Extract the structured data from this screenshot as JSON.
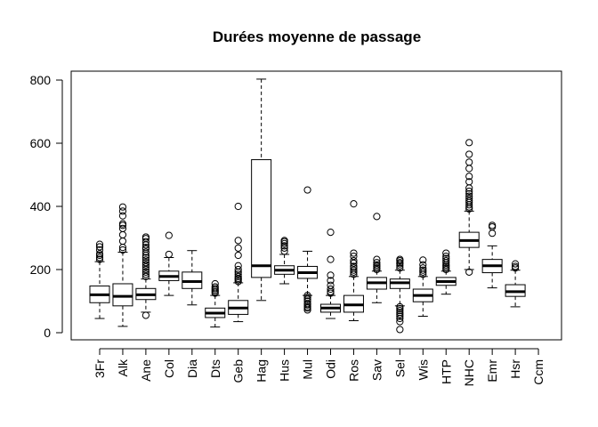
{
  "chart_data": {
    "type": "box",
    "title": "Durées moyenne de passage",
    "xlabel": "",
    "ylabel": "",
    "ylim": [
      -20,
      830
    ],
    "y_ticks": [
      0,
      200,
      400,
      600,
      800
    ],
    "grid": false,
    "legend": "none",
    "categories": [
      "3Fr",
      "Alk",
      "Ane",
      "Col",
      "Dia",
      "Dts",
      "Geb",
      "Hag",
      "Hus",
      "Mul",
      "Odi",
      "Ros",
      "Sav",
      "Sel",
      "Wis",
      "HTP",
      "NHC",
      "Emr",
      "Hsr",
      "Ccm"
    ],
    "boxes": [
      {
        "category": "3Fr",
        "min": 45,
        "q1": 95,
        "median": 120,
        "q3": 148,
        "max": 225,
        "outliers": [
          232,
          238,
          245,
          250,
          262,
          272,
          280
        ]
      },
      {
        "category": "Alk",
        "min": 20,
        "q1": 85,
        "median": 115,
        "q3": 155,
        "max": 255,
        "outliers": [
          262,
          270,
          290,
          310,
          330,
          340,
          345,
          370,
          385,
          398
        ]
      },
      {
        "category": "Ane",
        "min": 65,
        "q1": 105,
        "median": 120,
        "q3": 140,
        "max": 170,
        "outliers": [
          55,
          178,
          185,
          192,
          200,
          208,
          215,
          222,
          230,
          238,
          245,
          255,
          265,
          270,
          278,
          288,
          298,
          303
        ]
      },
      {
        "category": "Col",
        "min": 118,
        "q1": 165,
        "median": 178,
        "q3": 195,
        "max": 238,
        "outliers": [
          248,
          308
        ]
      },
      {
        "category": "Dia",
        "min": 88,
        "q1": 140,
        "median": 162,
        "q3": 192,
        "max": 260,
        "outliers": []
      },
      {
        "category": "Dts",
        "min": 18,
        "q1": 48,
        "median": 62,
        "q3": 78,
        "max": 118,
        "outliers": [
          125,
          130,
          135,
          140,
          145,
          155
        ]
      },
      {
        "category": "Geb",
        "min": 35,
        "q1": 58,
        "median": 78,
        "q3": 102,
        "max": 158,
        "outliers": [
          162,
          168,
          172,
          178,
          185,
          192,
          200,
          212,
          245,
          268,
          292,
          400
        ]
      },
      {
        "category": "Hag",
        "min": 102,
        "q1": 175,
        "median": 212,
        "q3": 548,
        "max": 803,
        "outliers": []
      },
      {
        "category": "Hus",
        "min": 155,
        "q1": 185,
        "median": 198,
        "q3": 212,
        "max": 248,
        "outliers": [
          258,
          268,
          275,
          282,
          288,
          292
        ]
      },
      {
        "category": "Mul",
        "min": 118,
        "q1": 172,
        "median": 190,
        "q3": 210,
        "max": 258,
        "outliers": [
          72,
          78,
          82,
          88,
          92,
          100,
          106,
          112,
          118,
          452
        ]
      },
      {
        "category": "Odi",
        "min": 45,
        "q1": 65,
        "median": 78,
        "q3": 90,
        "max": 118,
        "outliers": [
          125,
          130,
          138,
          150,
          165,
          182,
          232,
          318
        ]
      },
      {
        "category": "Ros",
        "min": 38,
        "q1": 65,
        "median": 88,
        "q3": 118,
        "max": 178,
        "outliers": [
          185,
          192,
          198,
          205,
          210,
          220,
          228,
          242,
          252,
          408
        ]
      },
      {
        "category": "Sav",
        "min": 95,
        "q1": 138,
        "median": 158,
        "q3": 175,
        "max": 195,
        "outliers": [
          200,
          205,
          210,
          215,
          222,
          232,
          368
        ]
      },
      {
        "category": "Sel",
        "min": 85,
        "q1": 140,
        "median": 158,
        "q3": 170,
        "max": 198,
        "outliers": [
          10,
          35,
          45,
          52,
          58,
          64,
          70,
          76,
          82,
          205,
          212,
          218,
          222,
          228,
          232
        ]
      },
      {
        "category": "Wis",
        "min": 52,
        "q1": 98,
        "median": 118,
        "q3": 138,
        "max": 178,
        "outliers": [
          185,
          192,
          198,
          205,
          215,
          230
        ]
      },
      {
        "category": "HTP",
        "min": 122,
        "q1": 150,
        "median": 162,
        "q3": 175,
        "max": 195,
        "outliers": [
          200,
          205,
          210,
          215,
          222,
          228,
          235,
          242,
          252
        ]
      },
      {
        "category": "NHC",
        "min": 200,
        "q1": 270,
        "median": 292,
        "q3": 318,
        "max": 385,
        "outliers": [
          192,
          392,
          398,
          405,
          412,
          418,
          425,
          432,
          440,
          448,
          458,
          478,
          495,
          520,
          540,
          565,
          602
        ]
      },
      {
        "category": "Emr",
        "min": 142,
        "q1": 190,
        "median": 212,
        "q3": 232,
        "max": 275,
        "outliers": [
          315,
          335,
          340
        ]
      },
      {
        "category": "Hsr",
        "min": 82,
        "q1": 115,
        "median": 130,
        "q3": 152,
        "max": 198,
        "outliers": [
          205,
          210,
          218
        ]
      },
      {
        "category": "Ccm",
        "min": null,
        "q1": null,
        "median": null,
        "q3": null,
        "max": null,
        "outliers": []
      }
    ]
  }
}
